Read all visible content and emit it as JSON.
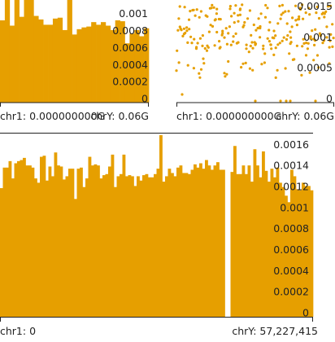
{
  "colors": {
    "series": "#e69f00",
    "axis": "#222222",
    "background": "#ffffff"
  },
  "chart_data": [
    {
      "type": "bar",
      "panel": "top-left",
      "y_ticks": [
        "0.001",
        "0.0008",
        "0.0006",
        "0.0004",
        "0.0002",
        "0"
      ],
      "ylim": [
        0,
        0.00116
      ],
      "x_range_labels": [
        "chr1: 0.000000000G",
        "chrY: 0.06G"
      ],
      "values": [
        0.00093,
        0.00116,
        0.00087,
        0.00116,
        0.00097,
        0.00116,
        0.00116,
        0.00098,
        0.00094,
        0.00088,
        0.00088,
        0.00095,
        0.00096,
        0.00082,
        0.00116,
        0.00077,
        0.00083,
        0.00085,
        0.00086,
        0.00091,
        0.00088,
        0.00091,
        0.00087,
        0.00082,
        0.00093,
        0.00092,
        0.00067,
        0.00078,
        0.00082,
        0.00075,
        0.00084
      ]
    },
    {
      "type": "scatter",
      "panel": "top-right",
      "y_ticks": [
        "0.0015",
        "0.001",
        "0.0005",
        "0"
      ],
      "ylim": [
        0,
        0.0016
      ],
      "x_range_labels": [
        "chr1: 0.000000000G",
        "chrY: 0.06G"
      ]
    },
    {
      "type": "bar",
      "panel": "bottom",
      "y_ticks": [
        "0.0016",
        "0.0014",
        "0.0012",
        "0.001",
        "0.0008",
        "0.0006",
        "0.0004",
        "0.0002",
        "0"
      ],
      "ylim": [
        0,
        0.00168
      ],
      "x_range_labels": [
        "chr1: 0",
        "chrY: 57,227,415"
      ],
      "values": [
        0.00119,
        0.00138,
        0.00138,
        0.00144,
        0.00128,
        0.00142,
        0.00144,
        0.00145,
        0.00147,
        0.0014,
        0.0014,
        0.00138,
        0.00128,
        0.00124,
        0.00148,
        0.00149,
        0.00126,
        0.00139,
        0.0013,
        0.00152,
        0.0014,
        0.00139,
        0.00127,
        0.0013,
        0.00137,
        0.00137,
        0.00109,
        0.00137,
        0.00138,
        0.0012,
        0.00128,
        0.00148,
        0.0014,
        0.00141,
        0.0014,
        0.00128,
        0.00131,
        0.00132,
        0.00139,
        0.0015,
        0.0012,
        0.0013,
        0.00132,
        0.0015,
        0.0013,
        0.00131,
        0.0013,
        0.00121,
        0.0013,
        0.00126,
        0.00131,
        0.00132,
        0.00129,
        0.00129,
        0.00132,
        0.00137,
        0.00168,
        0.00125,
        0.0013,
        0.00137,
        0.00133,
        0.0013,
        0.00138,
        0.0014,
        0.00133,
        0.00133,
        0.00132,
        0.00136,
        0.00141,
        0.00138,
        0.00142,
        0.00137,
        0.00145,
        0.0014,
        0.00136,
        0.0014,
        0.00143,
        0.00136,
        0.00136,
        0.0,
        0.0,
        0.00134,
        0.00158,
        0.00132,
        0.00132,
        0.0014,
        0.00132,
        0.0014,
        0.00125,
        0.00155,
        0.0014,
        0.00129,
        0.00153,
        0.00135,
        0.00125,
        0.00137,
        0.00129,
        0.00138,
        0.00124,
        0.0012,
        0.00112,
        0.00106,
        0.00136,
        0.0013,
        0.00118,
        0.00117,
        0.00124,
        0.00121,
        0.00121,
        0.00117
      ]
    }
  ]
}
